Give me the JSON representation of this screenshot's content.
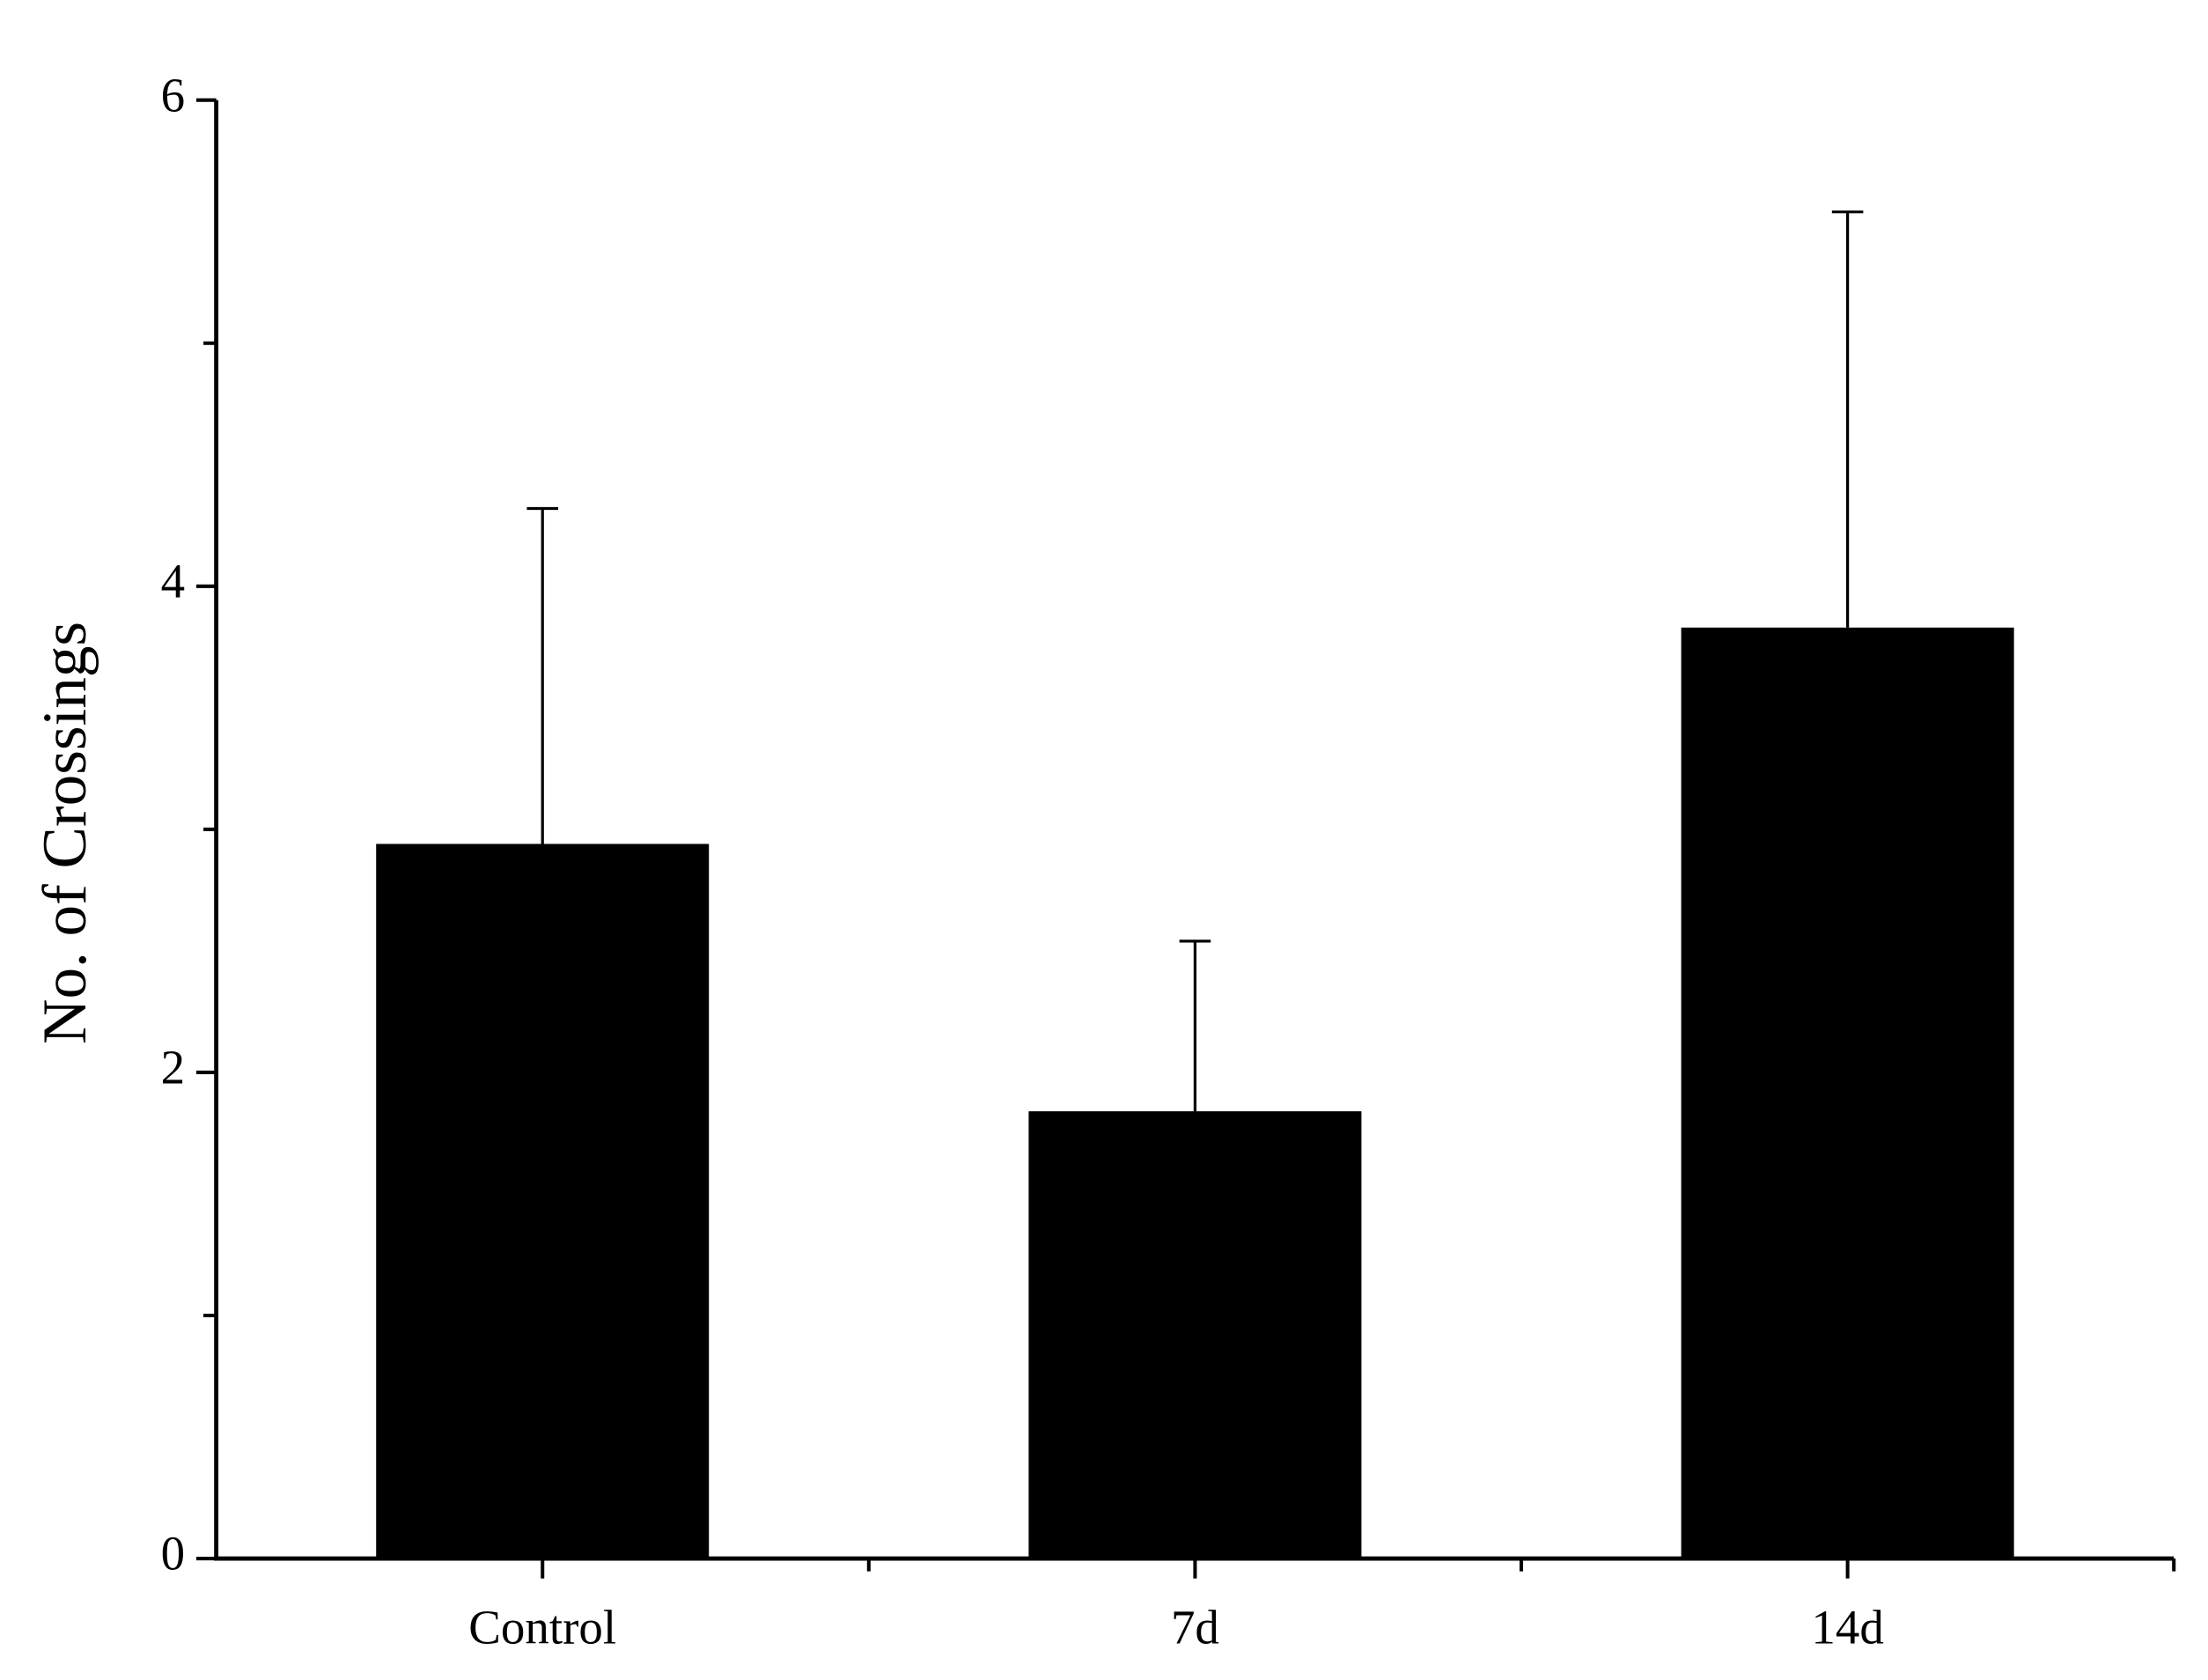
{
  "chart_data": {
    "type": "bar",
    "y_label": "No. of Crossings",
    "categories": [
      "Control",
      "7d",
      "14d"
    ],
    "values": [
      2.94,
      1.84,
      3.83
    ],
    "errors": [
      1.38,
      0.7,
      1.71
    ],
    "color": "#000000",
    "ylim": [
      0,
      6
    ],
    "yticks": [
      0,
      2,
      4,
      6
    ],
    "minor_yticks": [
      1,
      3,
      5
    ],
    "grid": false
  }
}
